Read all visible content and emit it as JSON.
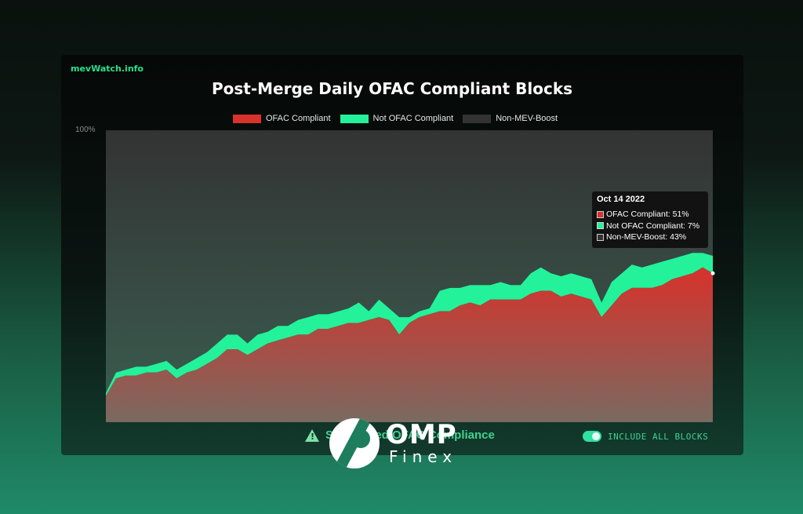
{
  "brand": "mevWatch.info",
  "footer": {
    "warning_text": "Sanctioned OFAC Compliance",
    "toggle_label": "INCLUDE ALL BLOCKS",
    "logo_main": "OMP",
    "logo_sub": "Finex"
  },
  "tooltip": {
    "date": "Oct 14 2022",
    "rows": [
      {
        "text": "OFAC Compliant: 51%",
        "color": "#d7322b"
      },
      {
        "text": "Not OFAC Compliant: 7%",
        "color": "#23f29b"
      },
      {
        "text": "Non-MEV-Boost: 43%",
        "color": "#333333"
      }
    ]
  },
  "chart_data": {
    "type": "area",
    "stacked": true,
    "title": "Post-Merge Daily OFAC Compliant Blocks",
    "ylim": [
      0,
      100
    ],
    "y_ticks": [
      "100%"
    ],
    "legend_position": "top",
    "x": [
      0,
      1,
      2,
      3,
      4,
      5,
      6,
      7,
      8,
      9,
      10,
      11,
      12,
      13,
      14,
      15,
      16,
      17,
      18,
      19,
      20,
      21,
      22,
      23,
      24,
      25,
      26,
      27,
      28,
      29,
      30,
      31,
      32,
      33,
      34,
      35,
      36,
      37,
      38,
      39,
      40,
      41,
      42,
      43,
      44,
      45,
      46,
      47,
      48,
      49,
      50,
      51,
      52,
      53,
      54,
      55,
      56,
      57,
      58,
      59,
      60
    ],
    "series": [
      {
        "name": "OFAC Compliant",
        "color": "#d7322b",
        "values": [
          9,
          15,
          16,
          16,
          17,
          17,
          18,
          15,
          17,
          18,
          20,
          22,
          25,
          25,
          23,
          25,
          27,
          28,
          29,
          30,
          30,
          32,
          32,
          33,
          34,
          34,
          35,
          36,
          35,
          30,
          34,
          36,
          37,
          38,
          38,
          40,
          41,
          40,
          42,
          42,
          42,
          42,
          44,
          45,
          45,
          43,
          44,
          43,
          42,
          36,
          40,
          44,
          46,
          46,
          46,
          47,
          49,
          50,
          51,
          53,
          51
        ],
        "legend": "OFAC Compliant"
      },
      {
        "name": "Not OFAC Compliant",
        "color": "#23f29b",
        "values": [
          1,
          2,
          2,
          3,
          2,
          3,
          3,
          3,
          3,
          4,
          4,
          5,
          5,
          5,
          4,
          5,
          4,
          5,
          4,
          5,
          6,
          5,
          5,
          5,
          5,
          7,
          3,
          6,
          4,
          6,
          2,
          2,
          2,
          7,
          8,
          6,
          6,
          7,
          5,
          6,
          5,
          5,
          7,
          8,
          6,
          7,
          7,
          7,
          7,
          5,
          8,
          7,
          8,
          7,
          8,
          8,
          7,
          7,
          7,
          5,
          6
        ]
      },
      {
        "name": "Non-MEV-Boost",
        "color": "#333333",
        "values": [
          90,
          83,
          82,
          81,
          81,
          80,
          79,
          82,
          80,
          78,
          76,
          73,
          70,
          70,
          73,
          70,
          69,
          67,
          67,
          65,
          64,
          63,
          63,
          62,
          61,
          59,
          62,
          58,
          61,
          64,
          64,
          62,
          61,
          55,
          54,
          54,
          53,
          53,
          53,
          52,
          53,
          53,
          49,
          47,
          49,
          50,
          49,
          50,
          51,
          59,
          52,
          49,
          46,
          47,
          46,
          45,
          44,
          43,
          42,
          42,
          43
        ]
      }
    ],
    "legend_entries": [
      "OFAC Compliant",
      "Not OFAC Compliant",
      "Non-MEV-Boost"
    ]
  }
}
